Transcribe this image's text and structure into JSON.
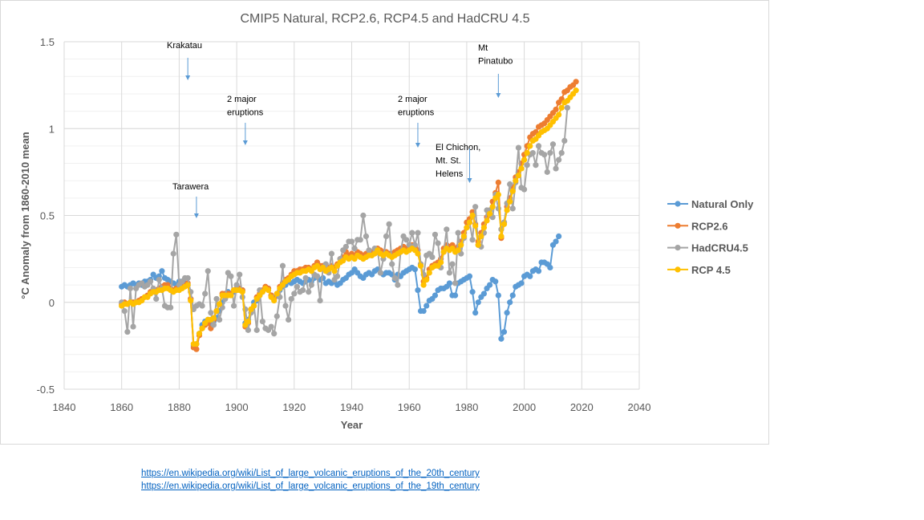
{
  "chart_data": {
    "type": "line",
    "title": "CMIP5 Natural, RCP2.6, RCP4.5 and HadCRU 4.5",
    "xlabel": "Year",
    "ylabel": "°C Anomaly from 1860-2010 mean",
    "xlim": [
      1840,
      2040
    ],
    "ylim": [
      -0.5,
      1.5
    ],
    "xticks": [
      1840,
      1860,
      1880,
      1900,
      1920,
      1940,
      1960,
      1980,
      2000,
      2020,
      2040
    ],
    "yticks": [
      -0.5,
      0,
      0.5,
      1,
      1.5
    ],
    "ytick_labels": [
      "-0.5",
      "0",
      "0.5",
      "1",
      "1.5"
    ],
    "grid": true,
    "legend": "right",
    "series": [
      {
        "name": "Natural Only",
        "color": "#5B9BD5",
        "start": 1860,
        "values": [
          0.09,
          0.1,
          0.09,
          0.1,
          0.11,
          0.1,
          0.11,
          0.1,
          0.12,
          0.12,
          0.13,
          0.16,
          0.14,
          0.15,
          0.18,
          0.14,
          0.13,
          0.12,
          0.11,
          0.1,
          0.12,
          0.12,
          0.11,
          0.1,
          0.02,
          -0.25,
          -0.24,
          -0.18,
          -0.13,
          -0.11,
          -0.1,
          -0.12,
          -0.11,
          -0.09,
          -0.05,
          0.0,
          0.04,
          0.06,
          0.05,
          0.06,
          0.07,
          0.08,
          0.07,
          -0.12,
          -0.1,
          -0.04,
          0.0,
          0.01,
          0.04,
          0.06,
          0.08,
          0.08,
          0.04,
          0.02,
          0.04,
          0.07,
          0.09,
          0.1,
          0.12,
          0.11,
          0.12,
          0.13,
          0.12,
          0.11,
          0.12,
          0.13,
          0.12,
          0.14,
          0.15,
          0.13,
          0.14,
          0.11,
          0.12,
          0.11,
          0.12,
          0.1,
          0.11,
          0.13,
          0.14,
          0.16,
          0.17,
          0.19,
          0.17,
          0.15,
          0.14,
          0.16,
          0.17,
          0.16,
          0.18,
          0.19,
          0.17,
          0.16,
          0.17,
          0.17,
          0.16,
          0.13,
          0.16,
          0.15,
          0.17,
          0.18,
          0.19,
          0.2,
          0.19,
          0.07,
          -0.05,
          -0.05,
          -0.02,
          0.01,
          0.02,
          0.04,
          0.07,
          0.08,
          0.08,
          0.09,
          0.11,
          0.04,
          0.04,
          0.11,
          0.12,
          0.13,
          0.14,
          0.15,
          0.06,
          -0.06,
          0.0,
          0.03,
          0.05,
          0.08,
          0.1,
          0.13,
          0.12,
          0.04,
          -0.21,
          -0.17,
          -0.06,
          0.0,
          0.04,
          0.09,
          0.1,
          0.11,
          0.15,
          0.16,
          0.15,
          0.18,
          0.19,
          0.18,
          0.23,
          0.23,
          0.22,
          0.2,
          0.33,
          0.35,
          0.38
        ]
      },
      {
        "name": "RCP2.6",
        "color": "#ED7D31",
        "start": 1860,
        "values": [
          -0.01,
          0.0,
          -0.01,
          0.0,
          0.0,
          0.0,
          0.01,
          0.02,
          0.03,
          0.04,
          0.06,
          0.07,
          0.07,
          0.08,
          0.09,
          0.1,
          0.1,
          0.08,
          0.07,
          0.08,
          0.08,
          0.09,
          0.1,
          0.11,
          0.02,
          -0.26,
          -0.27,
          -0.19,
          -0.15,
          -0.13,
          -0.12,
          -0.15,
          -0.1,
          -0.05,
          -0.01,
          0.05,
          0.05,
          0.05,
          0.05,
          0.07,
          0.08,
          0.08,
          0.07,
          -0.14,
          -0.12,
          -0.04,
          -0.02,
          0.03,
          0.05,
          0.07,
          0.09,
          0.08,
          0.04,
          0.02,
          0.05,
          0.09,
          0.11,
          0.13,
          0.14,
          0.16,
          0.18,
          0.18,
          0.19,
          0.19,
          0.2,
          0.2,
          0.19,
          0.21,
          0.23,
          0.21,
          0.21,
          0.2,
          0.2,
          0.21,
          0.2,
          0.22,
          0.25,
          0.26,
          0.29,
          0.27,
          0.28,
          0.27,
          0.29,
          0.28,
          0.27,
          0.28,
          0.29,
          0.29,
          0.3,
          0.31,
          0.3,
          0.29,
          0.29,
          0.28,
          0.28,
          0.29,
          0.3,
          0.31,
          0.32,
          0.31,
          0.32,
          0.33,
          0.32,
          0.3,
          0.22,
          0.12,
          0.14,
          0.19,
          0.21,
          0.22,
          0.23,
          0.25,
          0.31,
          0.33,
          0.32,
          0.33,
          0.31,
          0.32,
          0.35,
          0.4,
          0.46,
          0.48,
          0.52,
          0.45,
          0.35,
          0.4,
          0.45,
          0.49,
          0.53,
          0.58,
          0.63,
          0.69,
          0.37,
          0.46,
          0.55,
          0.6,
          0.66,
          0.72,
          0.75,
          0.8,
          0.85,
          0.9,
          0.95,
          0.97,
          0.98,
          1.01,
          1.02,
          1.03,
          1.05,
          1.07,
          1.09,
          1.11,
          1.15,
          1.17,
          1.21,
          1.22,
          1.24,
          1.25,
          1.27
        ]
      },
      {
        "name": "HadCRU4.5",
        "color": "#A5A5A5",
        "start": 1860,
        "values": [
          0.0,
          -0.05,
          -0.17,
          0.08,
          -0.14,
          0.08,
          0.1,
          0.11,
          0.09,
          0.1,
          0.12,
          0.08,
          0.02,
          0.13,
          0.08,
          -0.02,
          -0.03,
          -0.03,
          0.28,
          0.39,
          0.1,
          0.12,
          0.14,
          0.14,
          0.06,
          -0.04,
          -0.02,
          -0.01,
          -0.02,
          0.05,
          0.18,
          -0.06,
          -0.13,
          0.02,
          -0.1,
          -0.03,
          0.02,
          0.17,
          0.15,
          -0.02,
          0.1,
          0.16,
          0.03,
          -0.04,
          -0.16,
          -0.06,
          -0.02,
          -0.16,
          0.07,
          -0.11,
          -0.15,
          -0.16,
          -0.14,
          -0.18,
          -0.08,
          0.03,
          0.21,
          -0.02,
          -0.1,
          0.02,
          0.05,
          0.09,
          0.06,
          0.07,
          0.14,
          0.06,
          0.1,
          0.16,
          0.15,
          0.01,
          0.2,
          0.22,
          0.17,
          0.28,
          0.13,
          0.15,
          0.25,
          0.3,
          0.32,
          0.35,
          0.35,
          0.31,
          0.36,
          0.36,
          0.5,
          0.38,
          0.3,
          0.27,
          0.31,
          0.3,
          0.17,
          0.25,
          0.38,
          0.45,
          0.22,
          0.14,
          0.1,
          0.29,
          0.38,
          0.36,
          0.33,
          0.4,
          0.33,
          0.4,
          0.22,
          0.16,
          0.27,
          0.28,
          0.26,
          0.39,
          0.34,
          0.2,
          0.29,
          0.42,
          0.17,
          0.22,
          0.11,
          0.4,
          0.28,
          0.37,
          0.43,
          0.46,
          0.36,
          0.55,
          0.33,
          0.32,
          0.4,
          0.53,
          0.53,
          0.49,
          0.62,
          0.54,
          0.42,
          0.46,
          0.57,
          0.68,
          0.54,
          0.69,
          0.89,
          0.66,
          0.65,
          0.79,
          0.85,
          0.86,
          0.79,
          0.9,
          0.86,
          0.85,
          0.75,
          0.86,
          0.91,
          0.77,
          0.82,
          0.86,
          0.93,
          1.12
        ]
      },
      {
        "name": "RCP 4.5",
        "color": "#FFC000",
        "start": 1860,
        "values": [
          -0.02,
          -0.01,
          -0.01,
          0.0,
          -0.01,
          0.0,
          0.0,
          0.01,
          0.03,
          0.03,
          0.05,
          0.06,
          0.06,
          0.07,
          0.07,
          0.08,
          0.08,
          0.07,
          0.06,
          0.07,
          0.07,
          0.08,
          0.09,
          0.1,
          0.01,
          -0.24,
          -0.24,
          -0.18,
          -0.15,
          -0.12,
          -0.1,
          -0.1,
          -0.09,
          -0.05,
          -0.01,
          0.04,
          0.04,
          0.04,
          0.04,
          0.07,
          0.07,
          0.07,
          0.06,
          -0.13,
          -0.11,
          -0.04,
          -0.02,
          0.02,
          0.04,
          0.06,
          0.08,
          0.07,
          0.03,
          0.01,
          0.05,
          0.08,
          0.1,
          0.12,
          0.13,
          0.15,
          0.16,
          0.17,
          0.17,
          0.18,
          0.18,
          0.19,
          0.18,
          0.2,
          0.21,
          0.19,
          0.2,
          0.18,
          0.19,
          0.2,
          0.18,
          0.21,
          0.23,
          0.24,
          0.26,
          0.25,
          0.26,
          0.25,
          0.27,
          0.26,
          0.25,
          0.26,
          0.27,
          0.27,
          0.28,
          0.3,
          0.28,
          0.27,
          0.28,
          0.27,
          0.26,
          0.27,
          0.28,
          0.29,
          0.3,
          0.29,
          0.3,
          0.31,
          0.3,
          0.28,
          0.21,
          0.1,
          0.13,
          0.17,
          0.2,
          0.21,
          0.21,
          0.23,
          0.29,
          0.31,
          0.3,
          0.31,
          0.29,
          0.3,
          0.33,
          0.38,
          0.43,
          0.46,
          0.5,
          0.44,
          0.33,
          0.38,
          0.43,
          0.47,
          0.51,
          0.55,
          0.6,
          0.62,
          0.38,
          0.45,
          0.53,
          0.58,
          0.64,
          0.7,
          0.73,
          0.77,
          0.82,
          0.86,
          0.9,
          0.93,
          0.94,
          0.96,
          0.98,
          0.99,
          1.0,
          1.02,
          1.04,
          1.06,
          1.08,
          1.12,
          1.15,
          1.16,
          1.18,
          1.2,
          1.22
        ]
      }
    ],
    "annotations": [
      {
        "lines": [
          "Krakatau"
        ],
        "year": 1883
      },
      {
        "lines": [
          "Tarawera"
        ],
        "year": 1886
      },
      {
        "lines": [
          "2 major",
          "eruptions"
        ],
        "year": 1903
      },
      {
        "lines": [
          "2 major",
          "eruptions"
        ],
        "year": 1963
      },
      {
        "lines": [
          "El Chichon,",
          "Mt. St.",
          "Helens"
        ],
        "year": 1981
      },
      {
        "lines": [
          "Mt",
          "Pinatubo"
        ],
        "year": 1991
      }
    ]
  },
  "links": [
    "https://en.wikipedia.org/wiki/List_of_large_volcanic_eruptions_of_the_20th_century",
    "https://en.wikipedia.org/wiki/List_of_large_volcanic_eruptions_of_the_19th_century"
  ]
}
